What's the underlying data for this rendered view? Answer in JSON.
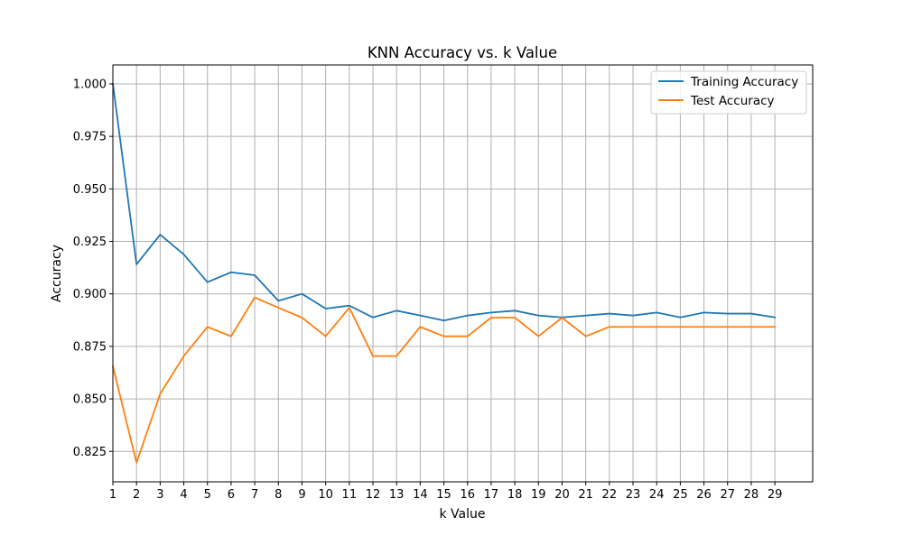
{
  "chart_data": {
    "type": "line",
    "title": "KNN Accuracy vs. k Value",
    "xlabel": "k Value",
    "ylabel": "Accuracy",
    "x": [
      1,
      2,
      3,
      4,
      5,
      6,
      7,
      8,
      9,
      10,
      11,
      12,
      13,
      14,
      15,
      16,
      17,
      18,
      19,
      20,
      21,
      22,
      23,
      24,
      25,
      26,
      27,
      28,
      29
    ],
    "xlim": [
      1,
      30.6
    ],
    "ylim": [
      0.8105,
      1.009
    ],
    "xticks": [
      1,
      2,
      3,
      4,
      5,
      6,
      7,
      8,
      9,
      10,
      11,
      12,
      13,
      14,
      15,
      16,
      17,
      18,
      19,
      20,
      21,
      22,
      23,
      24,
      25,
      26,
      27,
      28,
      29
    ],
    "yticks": [
      0.825,
      0.85,
      0.875,
      0.9,
      0.925,
      0.95,
      0.975,
      1.0
    ],
    "ytick_labels": [
      "0.825",
      "0.850",
      "0.875",
      "0.900",
      "0.925",
      "0.950",
      "0.975",
      "1.000"
    ],
    "grid": true,
    "legend_position": "top-right",
    "series": [
      {
        "name": "Training Accuracy",
        "color": "#1f77b4",
        "values": [
          1.0,
          0.9141,
          0.9282,
          0.9188,
          0.9056,
          0.9103,
          0.9089,
          0.8967,
          0.9,
          0.893,
          0.8944,
          0.8888,
          0.892,
          0.8897,
          0.8873,
          0.8897,
          0.8911,
          0.892,
          0.8897,
          0.8888,
          0.8897,
          0.8906,
          0.8897,
          0.8911,
          0.8888,
          0.8911,
          0.8906,
          0.8906,
          0.8888
        ]
      },
      {
        "name": "Test Accuracy",
        "color": "#ff7f0e",
        "values": [
          0.8655,
          0.8196,
          0.8524,
          0.8704,
          0.8843,
          0.8798,
          0.8983,
          0.8934,
          0.8887,
          0.8798,
          0.8934,
          0.8704,
          0.8704,
          0.8843,
          0.8798,
          0.8798,
          0.8887,
          0.8887,
          0.8798,
          0.8887,
          0.8798,
          0.8843,
          0.8843,
          0.8843,
          0.8843,
          0.8843,
          0.8843,
          0.8843,
          0.8843
        ]
      }
    ]
  }
}
